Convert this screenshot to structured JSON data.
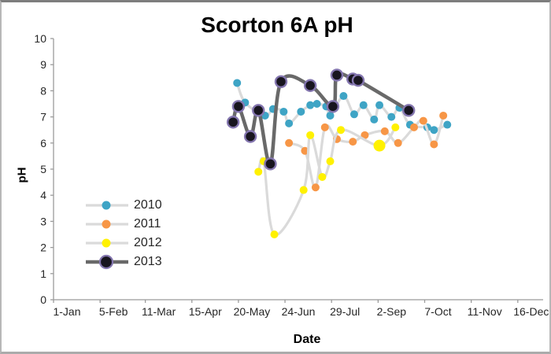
{
  "window": {
    "background": "#ffffff",
    "frame_top_color": "#7d7d7d",
    "frame_side_color": "#b7b7b7"
  },
  "title": {
    "text": "Scorton 6A pH"
  },
  "axes": {
    "x": {
      "label": "Date",
      "tick_labels": [
        "1-Jan",
        "5-Feb",
        "11-Mar",
        "15-Apr",
        "20-May",
        "24-Jun",
        "29-Jul",
        "2-Sep",
        "7-Oct",
        "11-Nov",
        "16-Dec"
      ],
      "tick_days": [
        1,
        36,
        70,
        105,
        140,
        175,
        210,
        245,
        280,
        315,
        350
      ]
    },
    "y": {
      "label": "pH",
      "min": 0,
      "max": 10,
      "step": 1,
      "tick_labels": [
        "0",
        "1",
        "2",
        "3",
        "4",
        "5",
        "6",
        "7",
        "8",
        "9",
        "10"
      ]
    }
  },
  "legend": {
    "items": [
      {
        "label": "2010"
      },
      {
        "label": "2011"
      },
      {
        "label": "2012"
      },
      {
        "label": "2013"
      }
    ]
  },
  "chart_data": {
    "type": "line",
    "title": "Scorton 6A pH",
    "xlabel": "Date",
    "ylabel": "pH",
    "ylim": [
      0,
      10
    ],
    "xlim_labels": [
      "1-Jan",
      "31-Dec"
    ],
    "grid": false,
    "line_style": "smoothed",
    "legend_position": "middle-left",
    "x_tick_labels": [
      "1-Jan",
      "5-Feb",
      "11-Mar",
      "15-Apr",
      "20-May",
      "24-Jun",
      "29-Jul",
      "2-Sep",
      "7-Oct",
      "11-Nov",
      "16-Dec"
    ],
    "series": [
      {
        "name": "2010",
        "marker_color": "#3ea4c5",
        "marker_outline": "none",
        "line_color": "#dadada",
        "line_width": 3.2,
        "marker_radius": 5,
        "points": [
          {
            "date": "19-May",
            "day": 139,
            "ph": 8.3
          },
          {
            "date": "25-May",
            "day": 145,
            "ph": 7.55
          },
          {
            "date": "9-Jun",
            "day": 160,
            "ph": 7.05
          },
          {
            "date": "15-Jun",
            "day": 166,
            "ph": 7.3
          },
          {
            "date": "23-Jun",
            "day": 174,
            "ph": 7.2
          },
          {
            "date": "27-Jun",
            "day": 178,
            "ph": 6.75
          },
          {
            "date": "6-Jul",
            "day": 187,
            "ph": 7.2
          },
          {
            "date": "13-Jul",
            "day": 194,
            "ph": 7.45
          },
          {
            "date": "18-Jul",
            "day": 199,
            "ph": 7.5
          },
          {
            "date": "25-Jul",
            "day": 206,
            "ph": 7.4
          },
          {
            "date": "28-Jul",
            "day": 209,
            "ph": 7.05
          },
          {
            "date": "7-Aug",
            "day": 219,
            "ph": 7.8
          },
          {
            "date": "15-Aug",
            "day": 227,
            "ph": 7.1
          },
          {
            "date": "22-Aug",
            "day": 234,
            "ph": 7.45
          },
          {
            "date": "30-Aug",
            "day": 242,
            "ph": 6.9
          },
          {
            "date": "3-Sep",
            "day": 246,
            "ph": 7.45
          },
          {
            "date": "12-Sep",
            "day": 255,
            "ph": 7.0
          },
          {
            "date": "18-Sep",
            "day": 261,
            "ph": 7.35
          },
          {
            "date": "26-Sep",
            "day": 269,
            "ph": 6.7
          },
          {
            "date": "9-Oct",
            "day": 282,
            "ph": 6.6
          },
          {
            "date": "14-Oct",
            "day": 287,
            "ph": 6.5
          },
          {
            "date": "24-Oct",
            "day": 297,
            "ph": 6.7
          }
        ]
      },
      {
        "name": "2011",
        "marker_color": "#f79646",
        "marker_outline": "none",
        "line_color": "#dadada",
        "line_width": 3.2,
        "marker_radius": 5,
        "points": [
          {
            "date": "27-Jun",
            "day": 178,
            "ph": 6.0
          },
          {
            "date": "9-Jul",
            "day": 190,
            "ph": 5.7
          },
          {
            "date": "17-Jul",
            "day": 198,
            "ph": 4.3
          },
          {
            "date": "24-Jul",
            "day": 205,
            "ph": 6.6
          },
          {
            "date": "2-Aug",
            "day": 214,
            "ph": 6.15
          },
          {
            "date": "14-Aug",
            "day": 226,
            "ph": 6.05
          },
          {
            "date": "23-Aug",
            "day": 235,
            "ph": 6.3
          },
          {
            "date": "7-Sep",
            "day": 250,
            "ph": 6.45
          },
          {
            "date": "17-Sep",
            "day": 260,
            "ph": 6.0
          },
          {
            "date": "29-Sep",
            "day": 272,
            "ph": 6.6
          },
          {
            "date": "6-Oct",
            "day": 279,
            "ph": 6.85
          },
          {
            "date": "14-Oct",
            "day": 287,
            "ph": 5.95
          },
          {
            "date": "21-Oct",
            "day": 294,
            "ph": 7.05
          }
        ]
      },
      {
        "name": "2012",
        "marker_color": "#fff100",
        "marker_outline": "none",
        "line_color": "#dadada",
        "line_width": 3.2,
        "marker_radius": 5,
        "points": [
          {
            "date": "4-Jun",
            "day": 155,
            "ph": 4.9
          },
          {
            "date": "8-Jun",
            "day": 159,
            "ph": 5.3
          },
          {
            "date": "16-Jun",
            "day": 167,
            "ph": 2.5
          },
          {
            "date": "8-Jul",
            "day": 189,
            "ph": 4.2
          },
          {
            "date": "13-Jul",
            "day": 194,
            "ph": 6.3
          },
          {
            "date": "22-Jul",
            "day": 203,
            "ph": 4.7
          },
          {
            "date": "28-Jul",
            "day": 209,
            "ph": 5.3
          },
          {
            "date": "5-Aug",
            "day": 217,
            "ph": 6.5
          },
          {
            "date": "3-Sep",
            "day": 246,
            "ph": 5.9,
            "big": true
          },
          {
            "date": "15-Sep",
            "day": 258,
            "ph": 6.6
          }
        ]
      },
      {
        "name": "2013",
        "marker_color": "#18151f",
        "marker_outline": "#8476af",
        "line_color": "#696969",
        "line_width": 4.5,
        "marker_radius": 7,
        "points": [
          {
            "date": "16-May",
            "day": 136,
            "ph": 6.8
          },
          {
            "date": "20-May",
            "day": 140,
            "ph": 7.4
          },
          {
            "date": "29-May",
            "day": 149,
            "ph": 6.25
          },
          {
            "date": "4-Jun",
            "day": 155,
            "ph": 7.25
          },
          {
            "date": "13-Jun",
            "day": 164,
            "ph": 5.2
          },
          {
            "date": "21-Jun",
            "day": 172,
            "ph": 8.35
          },
          {
            "date": "13-Jul",
            "day": 194,
            "ph": 8.2
          },
          {
            "date": "30-Jul",
            "day": 211,
            "ph": 7.4
          },
          {
            "date": "2-Aug",
            "day": 214,
            "ph": 8.6
          },
          {
            "date": "14-Aug",
            "day": 226,
            "ph": 8.45
          },
          {
            "date": "18-Aug",
            "day": 230,
            "ph": 8.4
          },
          {
            "date": "25-Sep",
            "day": 268,
            "ph": 7.25
          }
        ]
      }
    ]
  }
}
